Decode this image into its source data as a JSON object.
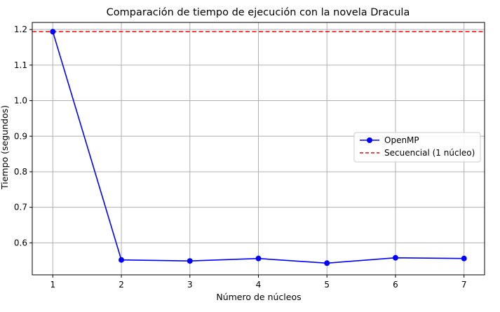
{
  "chart_data": {
    "type": "line",
    "title": "Comparación de tiempo de ejecución con la novela Dracula",
    "xlabel": "Número de núcleos",
    "ylabel": "Tiempo (segundos)",
    "x": [
      1,
      2,
      3,
      4,
      5,
      6,
      7
    ],
    "xticks": [
      "1",
      "2",
      "3",
      "4",
      "5",
      "6",
      "7"
    ],
    "yticks": [
      "0.6",
      "0.7",
      "0.8",
      "0.9",
      "1.0",
      "1.1",
      "1.2"
    ],
    "xlim": [
      0.7,
      7.3
    ],
    "ylim": [
      0.51,
      1.22
    ],
    "grid": true,
    "legend_position": "center-right",
    "series": [
      {
        "name": "OpenMP",
        "style": "solid-line-with-circle-markers",
        "color": "#0000ff",
        "values": [
          1.194,
          0.552,
          0.549,
          0.556,
          0.543,
          0.558,
          0.556
        ]
      }
    ],
    "reference_lines": [
      {
        "name": "Secuencial (1 núcleo)",
        "style": "dashed",
        "color": "#ff0000",
        "y": 1.194
      }
    ]
  }
}
